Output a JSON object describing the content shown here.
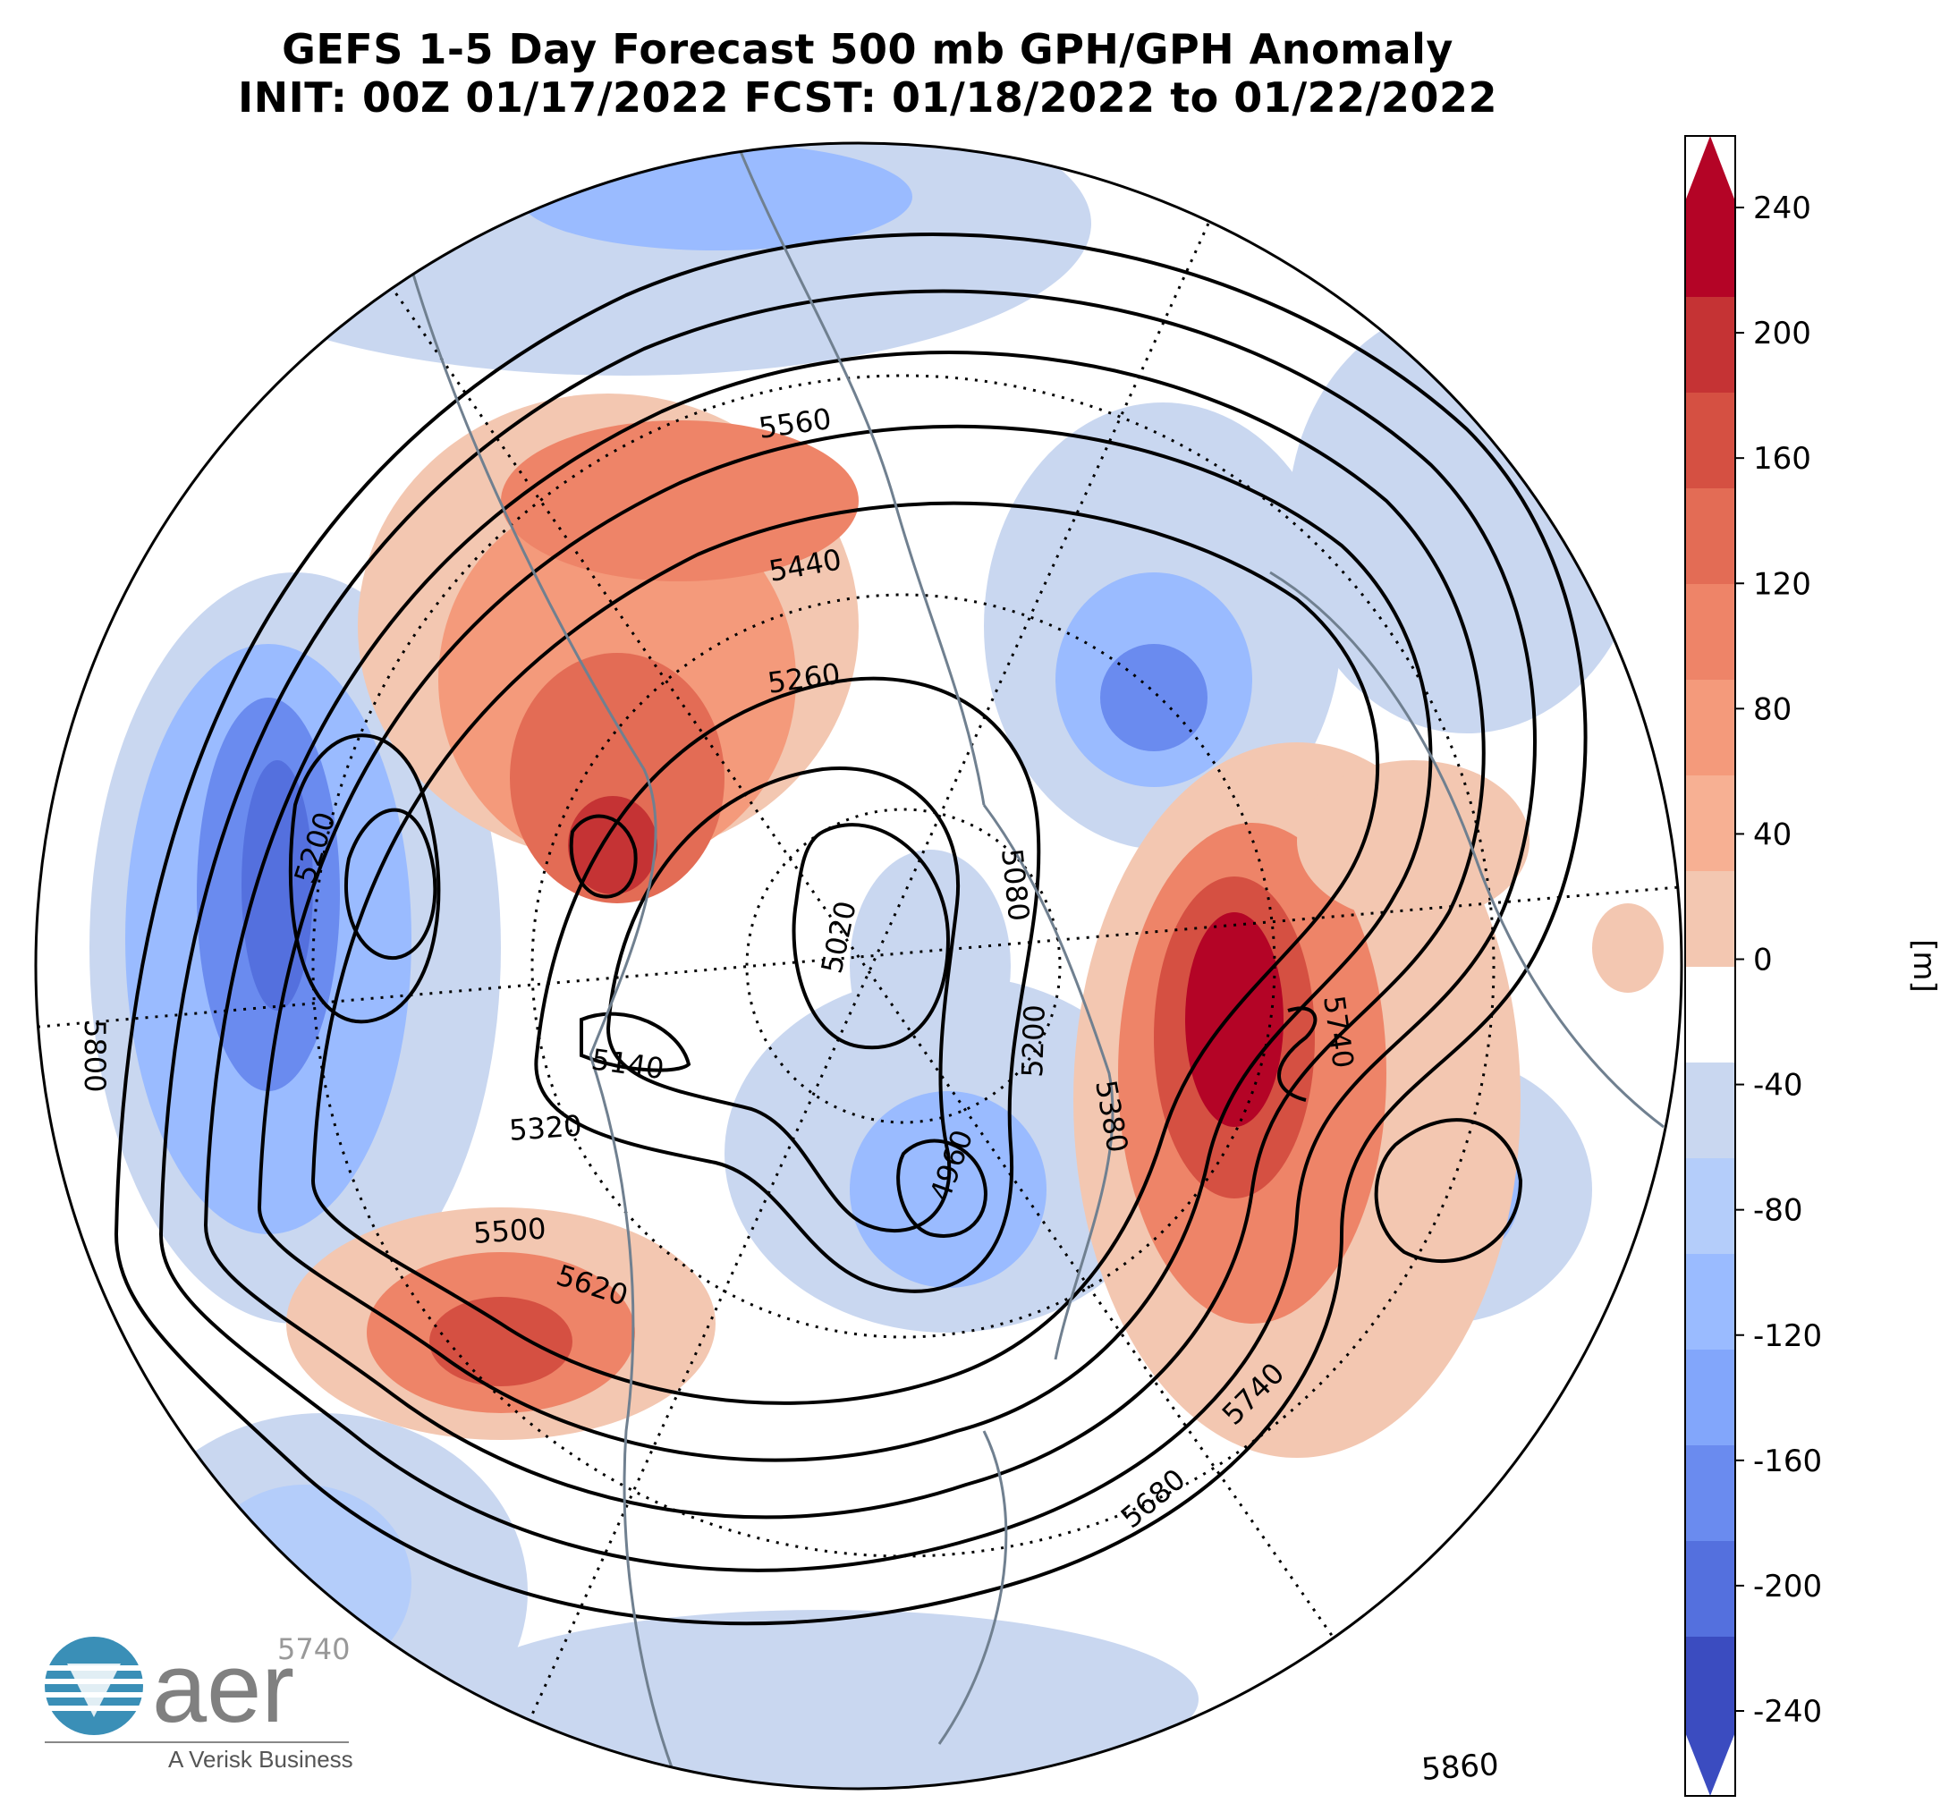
{
  "title_line1": "GEFS 1-5 Day Forecast 500 mb GPH/GPH Anomaly",
  "title_line2": "INIT: 00Z 01/17/2022    FCST: 01/18/2022 to 01/22/2022",
  "colorbar": {
    "unit_label": "[m]",
    "ticks": [
      "240",
      "200",
      "160",
      "120",
      "80",
      "40",
      "0",
      "-40",
      "-80",
      "-120",
      "-160",
      "-200",
      "-240"
    ],
    "colors": [
      "#b40426",
      "#c53334",
      "#d55042",
      "#e36c55",
      "#ee8468",
      "#f49a7b",
      "#f7b093",
      "#f3c7b1",
      "#ffffff",
      "#c9d7f0",
      "#b4cdfa",
      "#9abbff",
      "#82a6fb",
      "#6a8bef",
      "#5470de",
      "#3b4cc0"
    ]
  },
  "contour_labels": [
    "5560",
    "5440",
    "5260",
    "5200",
    "5080",
    "5020",
    "5140",
    "5320",
    "5500",
    "5620",
    "5740",
    "5680",
    "5200",
    "5380",
    "5740",
    "4960",
    "5800",
    "5740",
    "5860"
  ],
  "logo": {
    "brand": "aer",
    "tagline": "A Verisk Business"
  }
}
